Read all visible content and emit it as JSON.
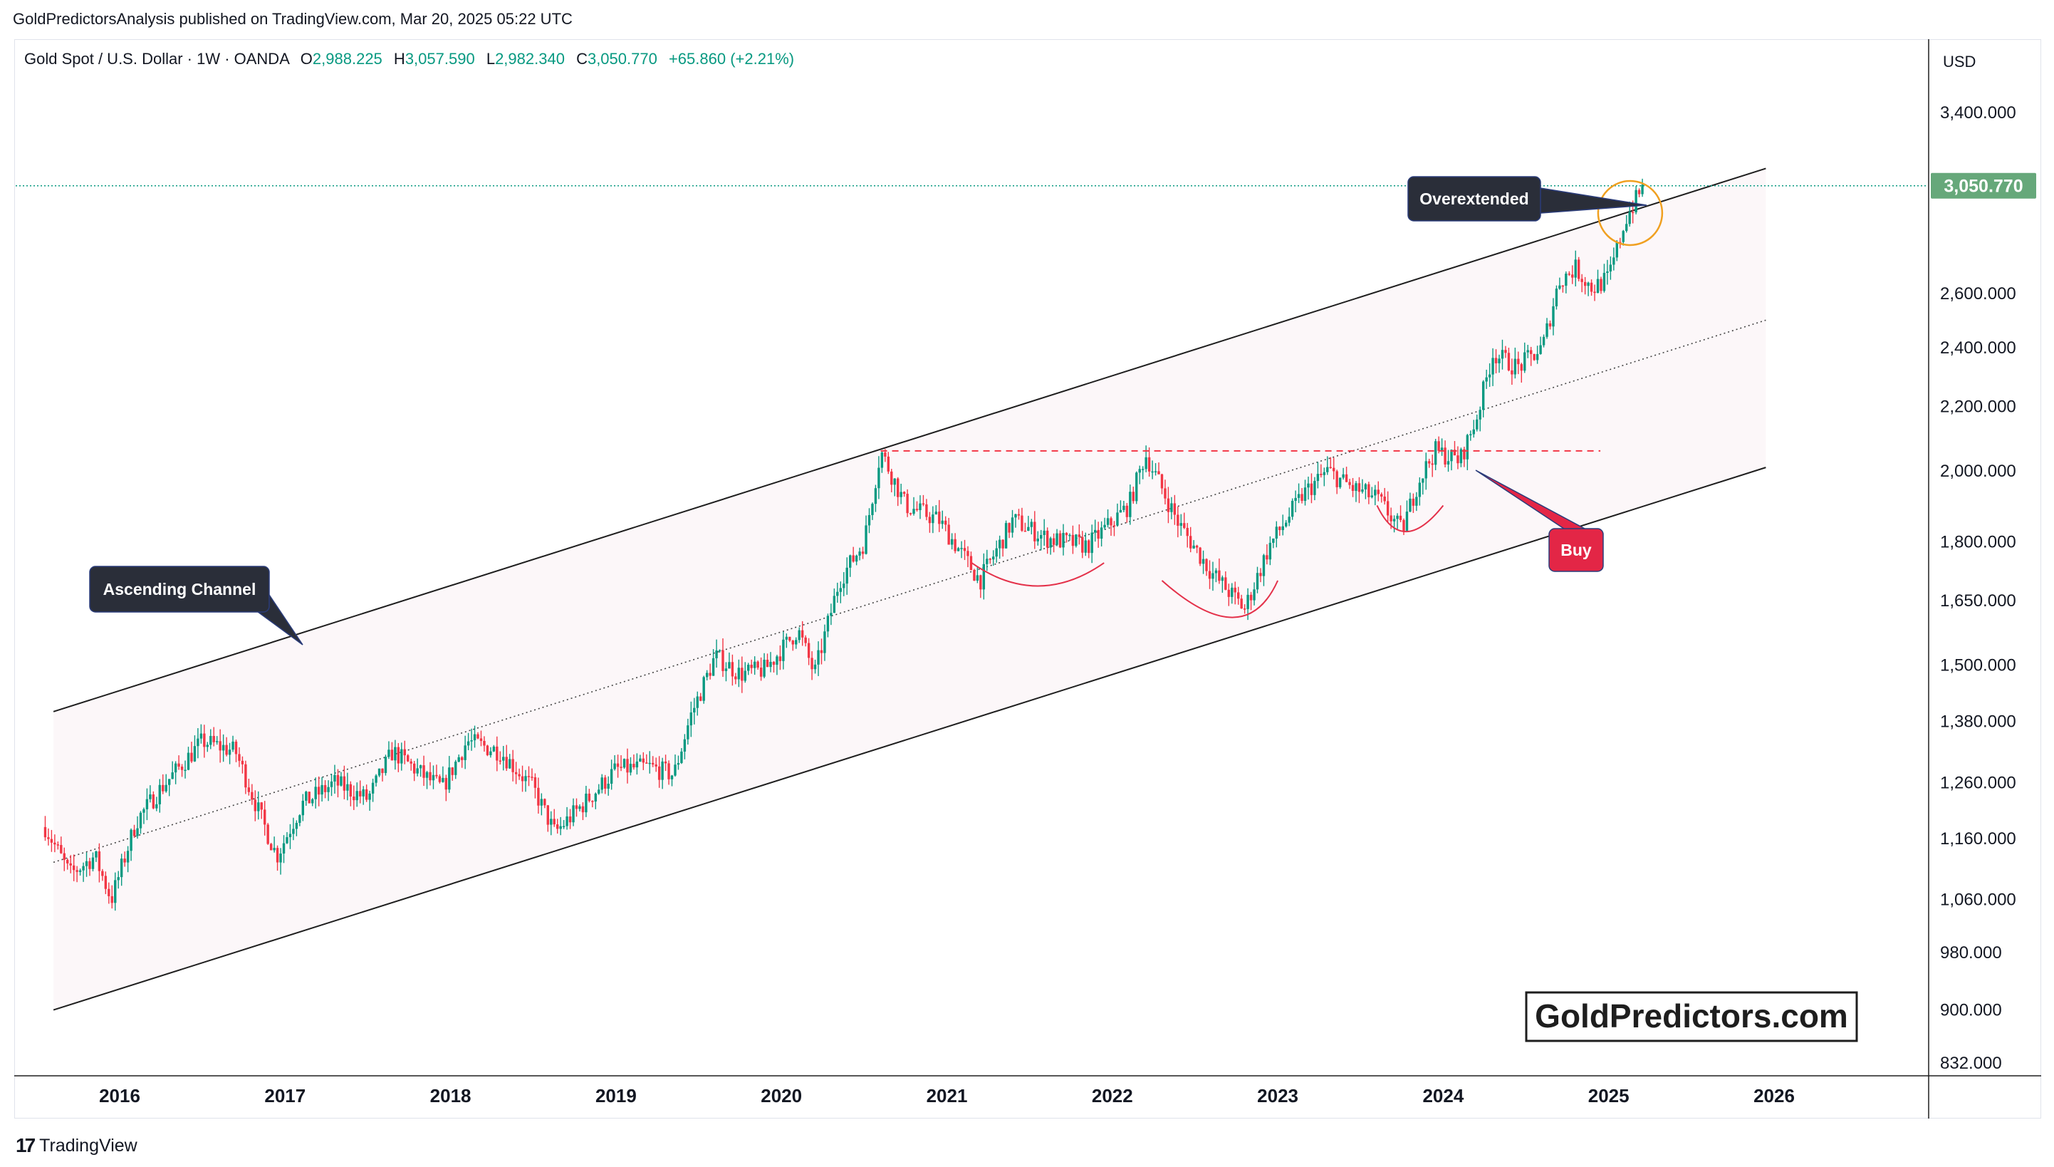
{
  "header": {
    "credit": "GoldPredictorsAnalysis published on TradingView.com, Mar 20, 2025 05:22 UTC"
  },
  "symbol": {
    "name": "Gold Spot / U.S. Dollar · 1W · OANDA",
    "open_label": "O",
    "open": "2,988.225",
    "high_label": "H",
    "high": "3,057.590",
    "low_label": "L",
    "low": "2,982.340",
    "close_label": "C",
    "close": "3,050.770",
    "change": "+65.860 (+2.21%)"
  },
  "currency": "USD",
  "price_tag": "3,050.770",
  "watermark": "GoldPredictors.com",
  "footer": {
    "brand": "TradingView",
    "mark": "17"
  },
  "colors": {
    "up": "#089981",
    "down": "#f23645",
    "channel_fill": "#fcf7f9",
    "price_tag_bg": "#66a87a",
    "circle": "#f0a020",
    "dashed_resistance": "#f23645",
    "callout_dark": "#2a2e39",
    "callout_buy": "#e32646"
  },
  "annotations": {
    "ascending_channel": "Ascending Channel",
    "overextended": "Overextended",
    "buy": "Buy"
  },
  "chart_data": {
    "type": "candlestick",
    "timeframe": "1W",
    "y_scale": "log",
    "y_ticks": [
      832,
      900,
      980,
      1060,
      1160,
      1260,
      1380,
      1500,
      1650,
      1800,
      2000,
      2200,
      2400,
      2600,
      3400
    ],
    "y_tick_labels": [
      "832.000",
      "900.000",
      "980.000",
      "1,060.000",
      "1,160.000",
      "1,260.000",
      "1,380.000",
      "1,500.000",
      "1,650.000",
      "1,800.000",
      "2,000.000",
      "2,200.000",
      "2,400.000",
      "2,600.000",
      "3,400.000"
    ],
    "x_ticks": [
      "2016",
      "2017",
      "2018",
      "2019",
      "2020",
      "2021",
      "2022",
      "2023",
      "2024",
      "2025",
      "2026"
    ],
    "price_path": [
      [
        2015.55,
        1180
      ],
      [
        2015.7,
        1100
      ],
      [
        2015.85,
        1130
      ],
      [
        2015.95,
        1060
      ],
      [
        2016.1,
        1190
      ],
      [
        2016.25,
        1250
      ],
      [
        2016.5,
        1340
      ],
      [
        2016.7,
        1320
      ],
      [
        2016.85,
        1200
      ],
      [
        2016.95,
        1130
      ],
      [
        2017.1,
        1220
      ],
      [
        2017.3,
        1260
      ],
      [
        2017.5,
        1230
      ],
      [
        2017.65,
        1320
      ],
      [
        2017.85,
        1270
      ],
      [
        2017.95,
        1250
      ],
      [
        2018.1,
        1340
      ],
      [
        2018.3,
        1320
      ],
      [
        2018.5,
        1250
      ],
      [
        2018.63,
        1170
      ],
      [
        2018.8,
        1220
      ],
      [
        2019.0,
        1285
      ],
      [
        2019.2,
        1290
      ],
      [
        2019.35,
        1275
      ],
      [
        2019.45,
        1390
      ],
      [
        2019.6,
        1520
      ],
      [
        2019.75,
        1480
      ],
      [
        2019.9,
        1490
      ],
      [
        2020.1,
        1580
      ],
      [
        2020.2,
        1480
      ],
      [
        2020.35,
        1700
      ],
      [
        2020.5,
        1800
      ],
      [
        2020.6,
        2060
      ],
      [
        2020.75,
        1900
      ],
      [
        2020.95,
        1860
      ],
      [
        2021.2,
        1700
      ],
      [
        2021.4,
        1860
      ],
      [
        2021.6,
        1810
      ],
      [
        2021.85,
        1790
      ],
      [
        2022.1,
        1900
      ],
      [
        2022.2,
        2050
      ],
      [
        2022.4,
        1850
      ],
      [
        2022.6,
        1720
      ],
      [
        2022.8,
        1630
      ],
      [
        2022.95,
        1790
      ],
      [
        2023.15,
        1930
      ],
      [
        2023.3,
        2000
      ],
      [
        2023.45,
        1950
      ],
      [
        2023.6,
        1920
      ],
      [
        2023.75,
        1830
      ],
      [
        2023.85,
        1970
      ],
      [
        2023.95,
        2060
      ],
      [
        2024.1,
        2030
      ],
      [
        2024.2,
        2160
      ],
      [
        2024.3,
        2380
      ],
      [
        2024.45,
        2330
      ],
      [
        2024.6,
        2400
      ],
      [
        2024.7,
        2650
      ],
      [
        2024.8,
        2700
      ],
      [
        2024.9,
        2620
      ],
      [
        2025.0,
        2660
      ],
      [
        2025.1,
        2900
      ],
      [
        2025.21,
        3050
      ]
    ],
    "channel": {
      "upper": [
        [
          2015.6,
          1400
        ],
        [
          2025.95,
          3130
        ]
      ],
      "lower": [
        [
          2015.6,
          900
        ],
        [
          2025.95,
          2010
        ]
      ],
      "mid_dotted": [
        [
          2015.6,
          1120
        ],
        [
          2025.95,
          2500
        ]
      ]
    },
    "resistance_level": 2060,
    "resistance_range": [
      2020.6,
      2024.95
    ],
    "last_price": 3050.77
  }
}
